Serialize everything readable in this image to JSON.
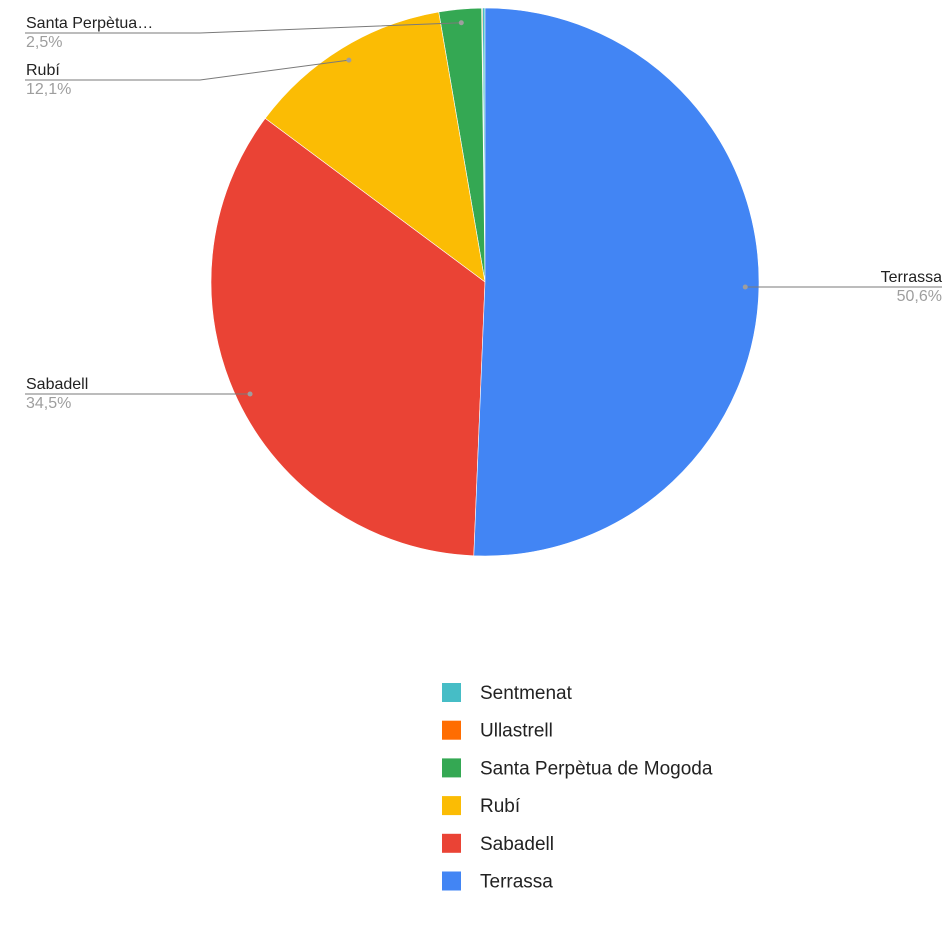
{
  "chart_data": {
    "type": "pie",
    "title": "",
    "slices": [
      {
        "name": "Sentmenat",
        "value": 0.15,
        "color": "#46bdc6"
      },
      {
        "name": "Ullastrell",
        "value": 0.05,
        "color": "#ff6d01"
      },
      {
        "name": "Santa Perpètua de Mogoda",
        "value": 2.5,
        "color": "#34a853"
      },
      {
        "name": "Rubí",
        "value": 12.1,
        "color": "#fbbc04"
      },
      {
        "name": "Sabadell",
        "value": 34.5,
        "color": "#ea4335"
      },
      {
        "name": "Terrassa",
        "value": 50.6,
        "color": "#4285f4"
      }
    ],
    "slice_labels": [
      {
        "slice": "Santa Perpètua de Mogoda",
        "name": "Santa Perpètua…",
        "percent": "2,5%"
      },
      {
        "slice": "Rubí",
        "name": "Rubí",
        "percent": "12,1%"
      },
      {
        "slice": "Terrassa",
        "name": "Terrassa",
        "percent": "50,6%"
      },
      {
        "slice": "Sabadell",
        "name": "Sabadell",
        "percent": "34,5%"
      }
    ],
    "legend": {
      "placement": "bottom",
      "entries": [
        "Sentmenat",
        "Ullastrell",
        "Santa Perpètua de Mogoda",
        "Rubí",
        "Sabadell",
        "Terrassa"
      ]
    }
  }
}
